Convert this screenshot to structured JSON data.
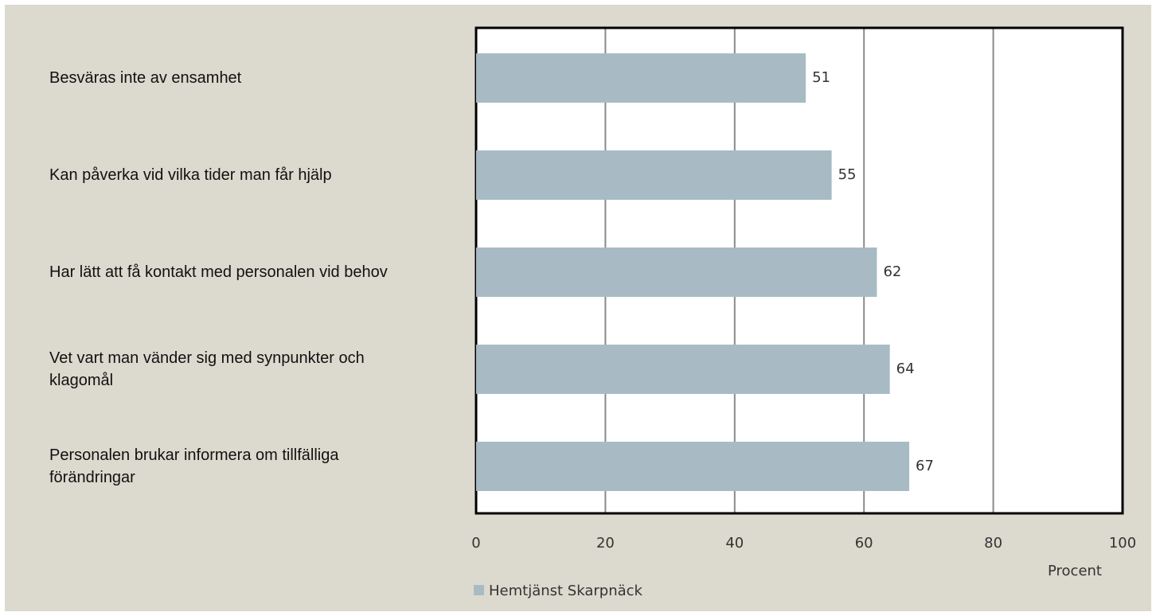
{
  "chart_data": {
    "type": "bar",
    "orientation": "horizontal",
    "categories": [
      "Besväras inte av ensamhet",
      "Kan påverka vid vilka tider man får hjälp",
      "Har lätt att få kontakt med personalen vid behov",
      "Vet vart man vänder sig med synpunkter och klagomål",
      "Personalen brukar informera om tillfälliga förändringar"
    ],
    "series": [
      {
        "name": "Hemtjänst Skarpnäck",
        "color": "#a8bbc5",
        "values": [
          51,
          55,
          62,
          64,
          67
        ]
      }
    ],
    "xlim": [
      0,
      100
    ],
    "xticks": [
      0,
      20,
      40,
      60,
      80,
      100
    ],
    "x_label": "Procent",
    "grid": true,
    "legend": "bottom-left"
  }
}
